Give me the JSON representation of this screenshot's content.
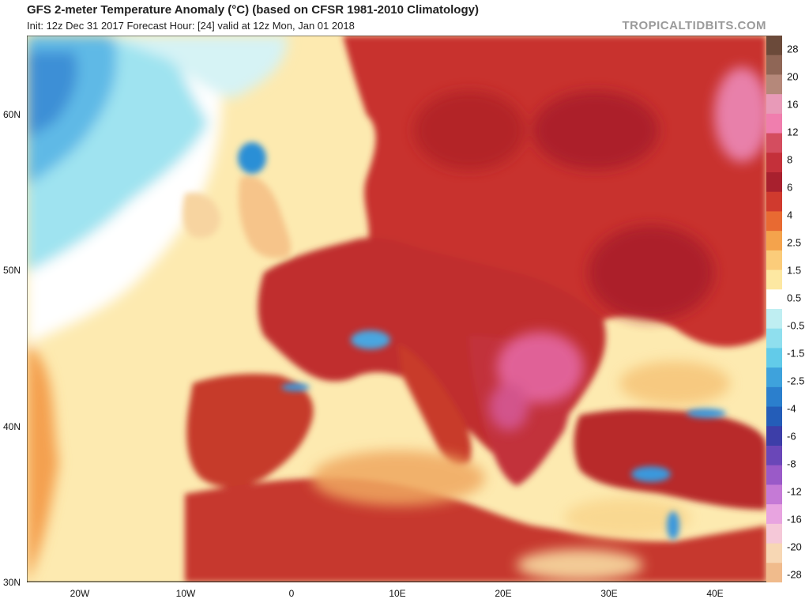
{
  "header": {
    "title": "GFS 2-meter Temperature Anomaly (°C) (based on CFSR 1981-2010 Climatology)",
    "subtitle": "Init: 12z Dec 31 2017   Forecast Hour: [24]   valid at 12z Mon, Jan 01 2018",
    "credit": "TROPICALTIDBITS.COM"
  },
  "map": {
    "latitude_labels": [
      "60N",
      "50N",
      "40N",
      "30N"
    ],
    "longitude_labels": [
      "20W",
      "10W",
      "0",
      "10E",
      "20E",
      "30E",
      "40E"
    ],
    "colors": {
      "ocean_near_normal": "#fdf0b4",
      "cold_ocean": "#5fc4ea",
      "warm_land": "#c8322d",
      "very_warm": "#a81f2a",
      "hot_pink": "#e66aa8",
      "cold_mountains": "#2a8fd6"
    }
  },
  "colorbar": {
    "labels": [
      "28",
      "20",
      "16",
      "12",
      "8",
      "6",
      "4",
      "2.5",
      "1.5",
      "0.5",
      "-0.5",
      "-1.5",
      "-2.5",
      "-4",
      "-6",
      "-8",
      "-12",
      "-16",
      "-20",
      "-28"
    ],
    "colors": [
      "#6b4a3a",
      "#8f6656",
      "#b5887a",
      "#e89ab8",
      "#f07eae",
      "#d44d5f",
      "#c4303a",
      "#a8202e",
      "#d03a2e",
      "#e86a32",
      "#f4a34c",
      "#fbcc7a",
      "#fde8a2",
      "#ffffff",
      "#bfeef2",
      "#8fdfee",
      "#62cbe9",
      "#3ea2dc",
      "#2b7fcd",
      "#245db8",
      "#3d3ea8",
      "#6a47b8",
      "#9a5ac8",
      "#c57ad6",
      "#e8a4e0",
      "#f5c8d8",
      "#f7d7b4",
      "#f0bb8c"
    ]
  }
}
